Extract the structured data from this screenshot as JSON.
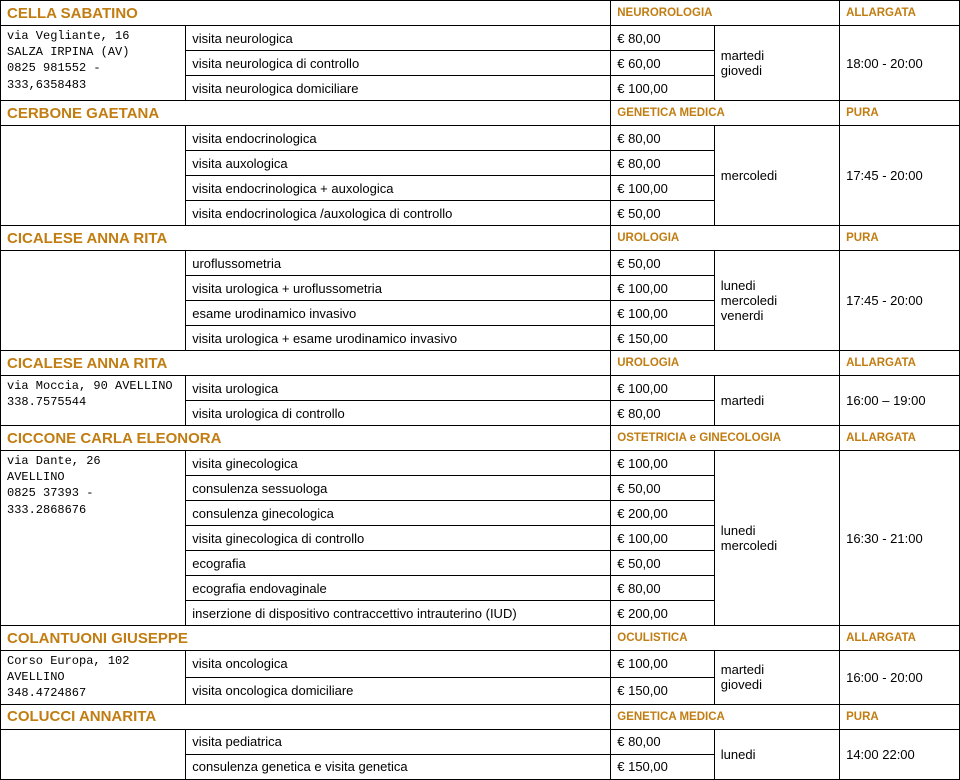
{
  "doctors": [
    {
      "name": "CELLA SABATINO",
      "specialty": "NEUROROLOGIA",
      "mode": "ALLARGATA",
      "address": "via Vegliante, 16\nSALZA IRPINA (AV)\n0825 981552 - 333,6358483",
      "services": [
        {
          "label": "visita neurologica",
          "price": "€ 80,00"
        },
        {
          "label": "visita neurologica di controllo",
          "price": "€ 60,00"
        },
        {
          "label": "visita neurologica domiciliare",
          "price": "€ 100,00"
        }
      ],
      "days": "martedi\ngiovedi",
      "hours": "18:00 - 20:00"
    },
    {
      "name": "CERBONE GAETANA",
      "specialty": "GENETICA MEDICA",
      "mode": "PURA",
      "address": "",
      "services": [
        {
          "label": "visita endocrinologica",
          "price": "€ 80,00"
        },
        {
          "label": "visita auxologica",
          "price": "€ 80,00"
        },
        {
          "label": "visita endocrinologica + auxologica",
          "price": "€ 100,00"
        },
        {
          "label": "visita endocrinologica /auxologica di controllo",
          "price": "€ 50,00"
        }
      ],
      "days": "mercoledi",
      "hours": "17:45 - 20:00"
    },
    {
      "name": "CICALESE ANNA RITA",
      "specialty": "UROLOGIA",
      "mode": "PURA",
      "address": "",
      "services": [
        {
          "label": "uroflussometria",
          "price": "€ 50,00"
        },
        {
          "label": "visita urologica + uroflussometria",
          "price": "€ 100,00"
        },
        {
          "label": "esame urodinamico invasivo",
          "price": "€ 100,00"
        },
        {
          "label": "visita urologica + esame urodinamico invasivo",
          "price": "€ 150,00"
        }
      ],
      "days": "lunedi\nmercoledi\nvenerdi",
      "hours": "17:45 - 20:00"
    },
    {
      "name": "CICALESE ANNA RITA",
      "specialty": "UROLOGIA",
      "mode": "ALLARGATA",
      "address": "via Moccia, 90 AVELLINO\n338.7575544",
      "services": [
        {
          "label": "visita urologica",
          "price": "€ 100,00"
        },
        {
          "label": "visita urologica di controllo",
          "price": "€ 80,00"
        }
      ],
      "days": "martedi",
      "hours": "16:00 – 19:00"
    },
    {
      "name": "CICCONE CARLA ELEONORA",
      "specialty": "OSTETRICIA e GINECOLOGIA",
      "mode": "ALLARGATA",
      "address": "via Dante, 26\nAVELLINO\n0825 37393 - 333.2868676",
      "services": [
        {
          "label": "visita ginecologica",
          "price": "€ 100,00"
        },
        {
          "label": "consulenza sessuologa",
          "price": "€ 50,00"
        },
        {
          "label": "consulenza ginecologica",
          "price": "€ 200,00"
        },
        {
          "label": "visita ginecologica di controllo",
          "price": "€ 100,00"
        },
        {
          "label": "ecografia",
          "price": "€ 50,00"
        },
        {
          "label": "ecografia endovaginale",
          "price": "€ 80,00"
        },
        {
          "label": "inserzione di dispositivo contraccettivo intrauterino (IUD)",
          "price": "€ 200,00"
        }
      ],
      "days": "lunedi\nmercoledi",
      "hours": "16:30 - 21:00"
    },
    {
      "name": "COLANTUONI GIUSEPPE",
      "specialty": "OCULISTICA",
      "mode": "ALLARGATA",
      "address": "Corso Europa, 102\nAVELLINO\n348.4724867",
      "services": [
        {
          "label": "visita oncologica",
          "price": "€ 100,00"
        },
        {
          "label": "visita oncologica domiciliare",
          "price": "€ 150,00"
        }
      ],
      "days": "martedi\ngiovedi",
      "hours": "16:00 - 20:00"
    },
    {
      "name": "COLUCCI ANNARITA",
      "specialty": "GENETICA MEDICA",
      "mode": "PURA",
      "address": "",
      "services": [
        {
          "label": "visita pediatrica",
          "price": "€ 80,00"
        },
        {
          "label": "consulenza genetica e visita genetica",
          "price": "€ 150,00"
        }
      ],
      "days": "lunedi",
      "hours": "14:00   22:00"
    }
  ]
}
